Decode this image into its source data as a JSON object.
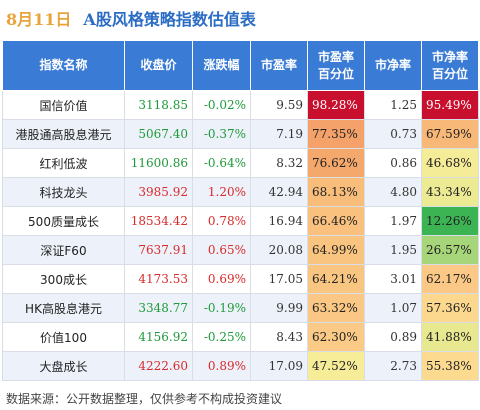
{
  "header": {
    "date": "8月11日",
    "title": "A股风格策略指数估值表"
  },
  "table": {
    "columns": [
      "指数名称",
      "收盘价",
      "涨跌幅",
      "市盈率",
      "市盈率\n百分位",
      "市净率",
      "市净率\n百分位"
    ],
    "rows": [
      {
        "name": "国信价值",
        "close": "3118.85",
        "change": "-0.02%",
        "direction": "down",
        "pe": "9.59",
        "pe_pct": "98.28%",
        "pe_color": "#c8102e",
        "pb": "1.25",
        "pb_pct": "95.49%",
        "pb_color": "#c8102e"
      },
      {
        "name": "港股通高股息港元",
        "close": "5067.40",
        "change": "-0.37%",
        "direction": "down",
        "pe": "7.19",
        "pe_pct": "77.35%",
        "pe_color": "#f4a26a",
        "pb": "0.73",
        "pb_pct": "67.59%",
        "pb_color": "#f8b878"
      },
      {
        "name": "红利低波",
        "close": "11600.86",
        "change": "-0.64%",
        "direction": "down",
        "pe": "8.32",
        "pe_pct": "76.62%",
        "pe_color": "#f5a86c",
        "pb": "0.86",
        "pb_pct": "46.68%",
        "pb_color": "#f5ec97"
      },
      {
        "name": "科技龙头",
        "close": "3985.92",
        "change": "1.20%",
        "direction": "up",
        "pe": "42.94",
        "pe_pct": "68.13%",
        "pe_color": "#f8bd7a",
        "pb": "4.80",
        "pb_pct": "43.34%",
        "pb_color": "#ecea93"
      },
      {
        "name": "500质量成长",
        "close": "18534.42",
        "change": "0.78%",
        "direction": "up",
        "pe": "16.94",
        "pe_pct": "66.46%",
        "pe_color": "#f9c07e",
        "pb": "1.97",
        "pb_pct": "12.26%",
        "pb_color": "#3cb454"
      },
      {
        "name": "深证F60",
        "close": "7637.91",
        "change": "0.65%",
        "direction": "up",
        "pe": "20.08",
        "pe_pct": "64.99%",
        "pe_color": "#f9c480",
        "pb": "1.95",
        "pb_pct": "26.57%",
        "pb_color": "#a6d57a"
      },
      {
        "name": "300成长",
        "close": "4173.53",
        "change": "0.69%",
        "direction": "up",
        "pe": "17.05",
        "pe_pct": "64.21%",
        "pe_color": "#f9c682",
        "pb": "3.01",
        "pb_pct": "62.17%",
        "pb_color": "#fbc985"
      },
      {
        "name": "HK高股息港元",
        "close": "3348.77",
        "change": "-0.19%",
        "direction": "down",
        "pe": "9.99",
        "pe_pct": "63.32%",
        "pe_color": "#fac884",
        "pb": "1.07",
        "pb_pct": "57.36%",
        "pb_color": "#fcd88e"
      },
      {
        "name": "价值100",
        "close": "4156.92",
        "change": "-0.25%",
        "direction": "down",
        "pe": "8.43",
        "pe_pct": "62.30%",
        "pe_color": "#fbca86",
        "pb": "0.89",
        "pb_pct": "41.88%",
        "pb_color": "#e7e88f"
      },
      {
        "name": "大盘成长",
        "close": "4222.60",
        "change": "0.89%",
        "direction": "up",
        "pe": "17.09",
        "pe_pct": "47.52%",
        "pe_color": "#f7ec98",
        "pb": "2.73",
        "pb_pct": "55.38%",
        "pb_color": "#fcdb90"
      }
    ]
  },
  "colors": {
    "up": "#d92b2b",
    "down": "#1f9a3a",
    "header_bg": "#3a7bd5"
  },
  "footer": {
    "source": "数据来源：公开数据整理，仅供参考不构成投资建议"
  }
}
